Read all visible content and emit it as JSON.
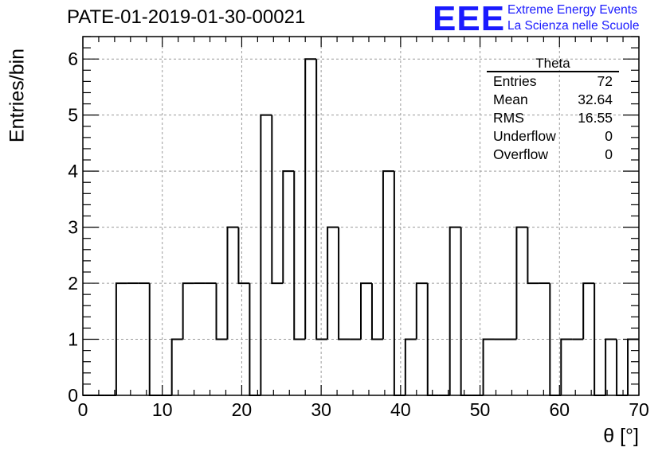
{
  "chart_data": {
    "type": "bar",
    "title": "PATE-01-2019-01-30-00021",
    "xlabel": "θ [°]",
    "ylabel": "Entries/bin",
    "xlim": [
      0,
      70
    ],
    "ylim": [
      0,
      6.4
    ],
    "bin_width": 1.4,
    "grid": true,
    "xticks": [
      0,
      10,
      20,
      30,
      40,
      50,
      60,
      70
    ],
    "yticks": [
      0,
      1,
      2,
      3,
      4,
      5,
      6
    ],
    "bin_edges_start": 0,
    "values": [
      0,
      0,
      0,
      2,
      2,
      2,
      0,
      0,
      1,
      2,
      2,
      2,
      1,
      3,
      2,
      0,
      5,
      2,
      4,
      1,
      6,
      1,
      3,
      1,
      1,
      2,
      1,
      4,
      0,
      1,
      2,
      0,
      0,
      3,
      0,
      0,
      1,
      1,
      1,
      3,
      2,
      2,
      0,
      1,
      1,
      2,
      0,
      1,
      0,
      1
    ],
    "stats": {
      "name": "Theta",
      "rows": [
        {
          "key": "Entries",
          "value": "72"
        },
        {
          "key": "Mean",
          "value": "32.64"
        },
        {
          "key": "RMS",
          "value": "16.55"
        },
        {
          "key": "Underflow",
          "value": "0"
        },
        {
          "key": "Overflow",
          "value": "0"
        }
      ]
    }
  },
  "brand": {
    "logo": "EEE",
    "line1": "Extreme Energy Events",
    "line2": "La Scienza nelle Scuole",
    "color": "#1a1aff"
  },
  "colors": {
    "line": "#000000",
    "grid": "#9a9a9a"
  }
}
